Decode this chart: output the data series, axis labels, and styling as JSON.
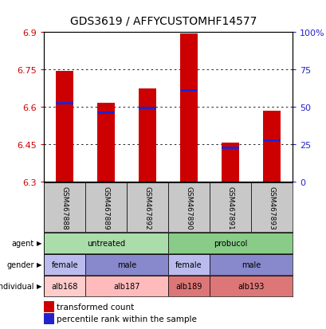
{
  "title": "GDS3619 / AFFYCUSTOMHF14577",
  "samples": [
    "GSM467888",
    "GSM467889",
    "GSM467892",
    "GSM467890",
    "GSM467891",
    "GSM467893"
  ],
  "bar_values": [
    6.745,
    6.615,
    6.675,
    6.895,
    6.455,
    6.585
  ],
  "bar_base": 6.3,
  "percentile_values": [
    6.615,
    6.575,
    6.595,
    6.665,
    6.435,
    6.465
  ],
  "ylim": [
    6.3,
    6.9
  ],
  "yticks": [
    6.3,
    6.45,
    6.6,
    6.75,
    6.9
  ],
  "ytick_labels_left": [
    "6.3",
    "6.45",
    "6.6",
    "6.75",
    "6.9"
  ],
  "ytick_labels_right": [
    "0",
    "25",
    "50",
    "75",
    "100%"
  ],
  "bar_color": "#cc0000",
  "percentile_color": "#2222cc",
  "axis_color_left": "#cc0000",
  "axis_color_right": "#2222cc",
  "sample_bg_color": "#c8c8c8",
  "agent_row": {
    "label": "agent",
    "groups": [
      {
        "text": "untreated",
        "span": [
          0,
          3
        ],
        "color": "#aaddaa"
      },
      {
        "text": "probucol",
        "span": [
          3,
          6
        ],
        "color": "#88cc88"
      }
    ]
  },
  "gender_row": {
    "label": "gender",
    "groups": [
      {
        "text": "female",
        "span": [
          0,
          1
        ],
        "color": "#bbbbee"
      },
      {
        "text": "male",
        "span": [
          1,
          3
        ],
        "color": "#8888cc"
      },
      {
        "text": "female",
        "span": [
          3,
          4
        ],
        "color": "#bbbbee"
      },
      {
        "text": "male",
        "span": [
          4,
          6
        ],
        "color": "#8888cc"
      }
    ]
  },
  "individual_row": {
    "label": "individual",
    "groups": [
      {
        "text": "alb168",
        "span": [
          0,
          1
        ],
        "color": "#ffcccc"
      },
      {
        "text": "alb187",
        "span": [
          1,
          3
        ],
        "color": "#ffbbbb"
      },
      {
        "text": "alb189",
        "span": [
          3,
          4
        ],
        "color": "#dd7777"
      },
      {
        "text": "alb193",
        "span": [
          4,
          6
        ],
        "color": "#dd7777"
      }
    ]
  },
  "legend_items": [
    {
      "color": "#cc0000",
      "label": "transformed count"
    },
    {
      "color": "#2222cc",
      "label": "percentile rank within the sample"
    }
  ]
}
